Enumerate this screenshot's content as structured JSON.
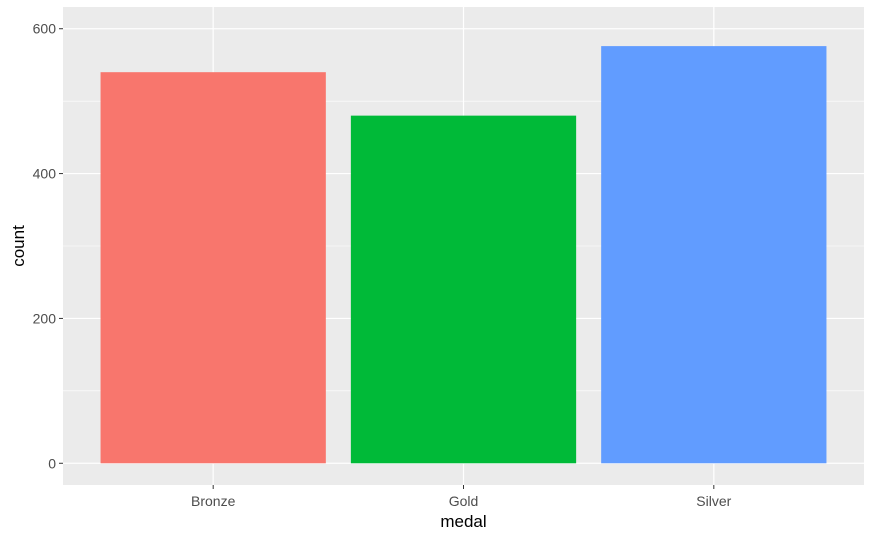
{
  "chart_data": {
    "type": "bar",
    "title": "",
    "xlabel": "medal",
    "ylabel": "count",
    "categories": [
      "Bronze",
      "Gold",
      "Silver"
    ],
    "values": [
      540,
      480,
      576
    ],
    "colors": [
      "#F8766D",
      "#00BA38",
      "#619CFF"
    ],
    "ylim": [
      -30,
      630
    ],
    "yticks": [
      0,
      200,
      400,
      600
    ],
    "grid": true,
    "legend": "none",
    "background": "#EBEBEB",
    "grid_color": "#FFFFFF"
  }
}
